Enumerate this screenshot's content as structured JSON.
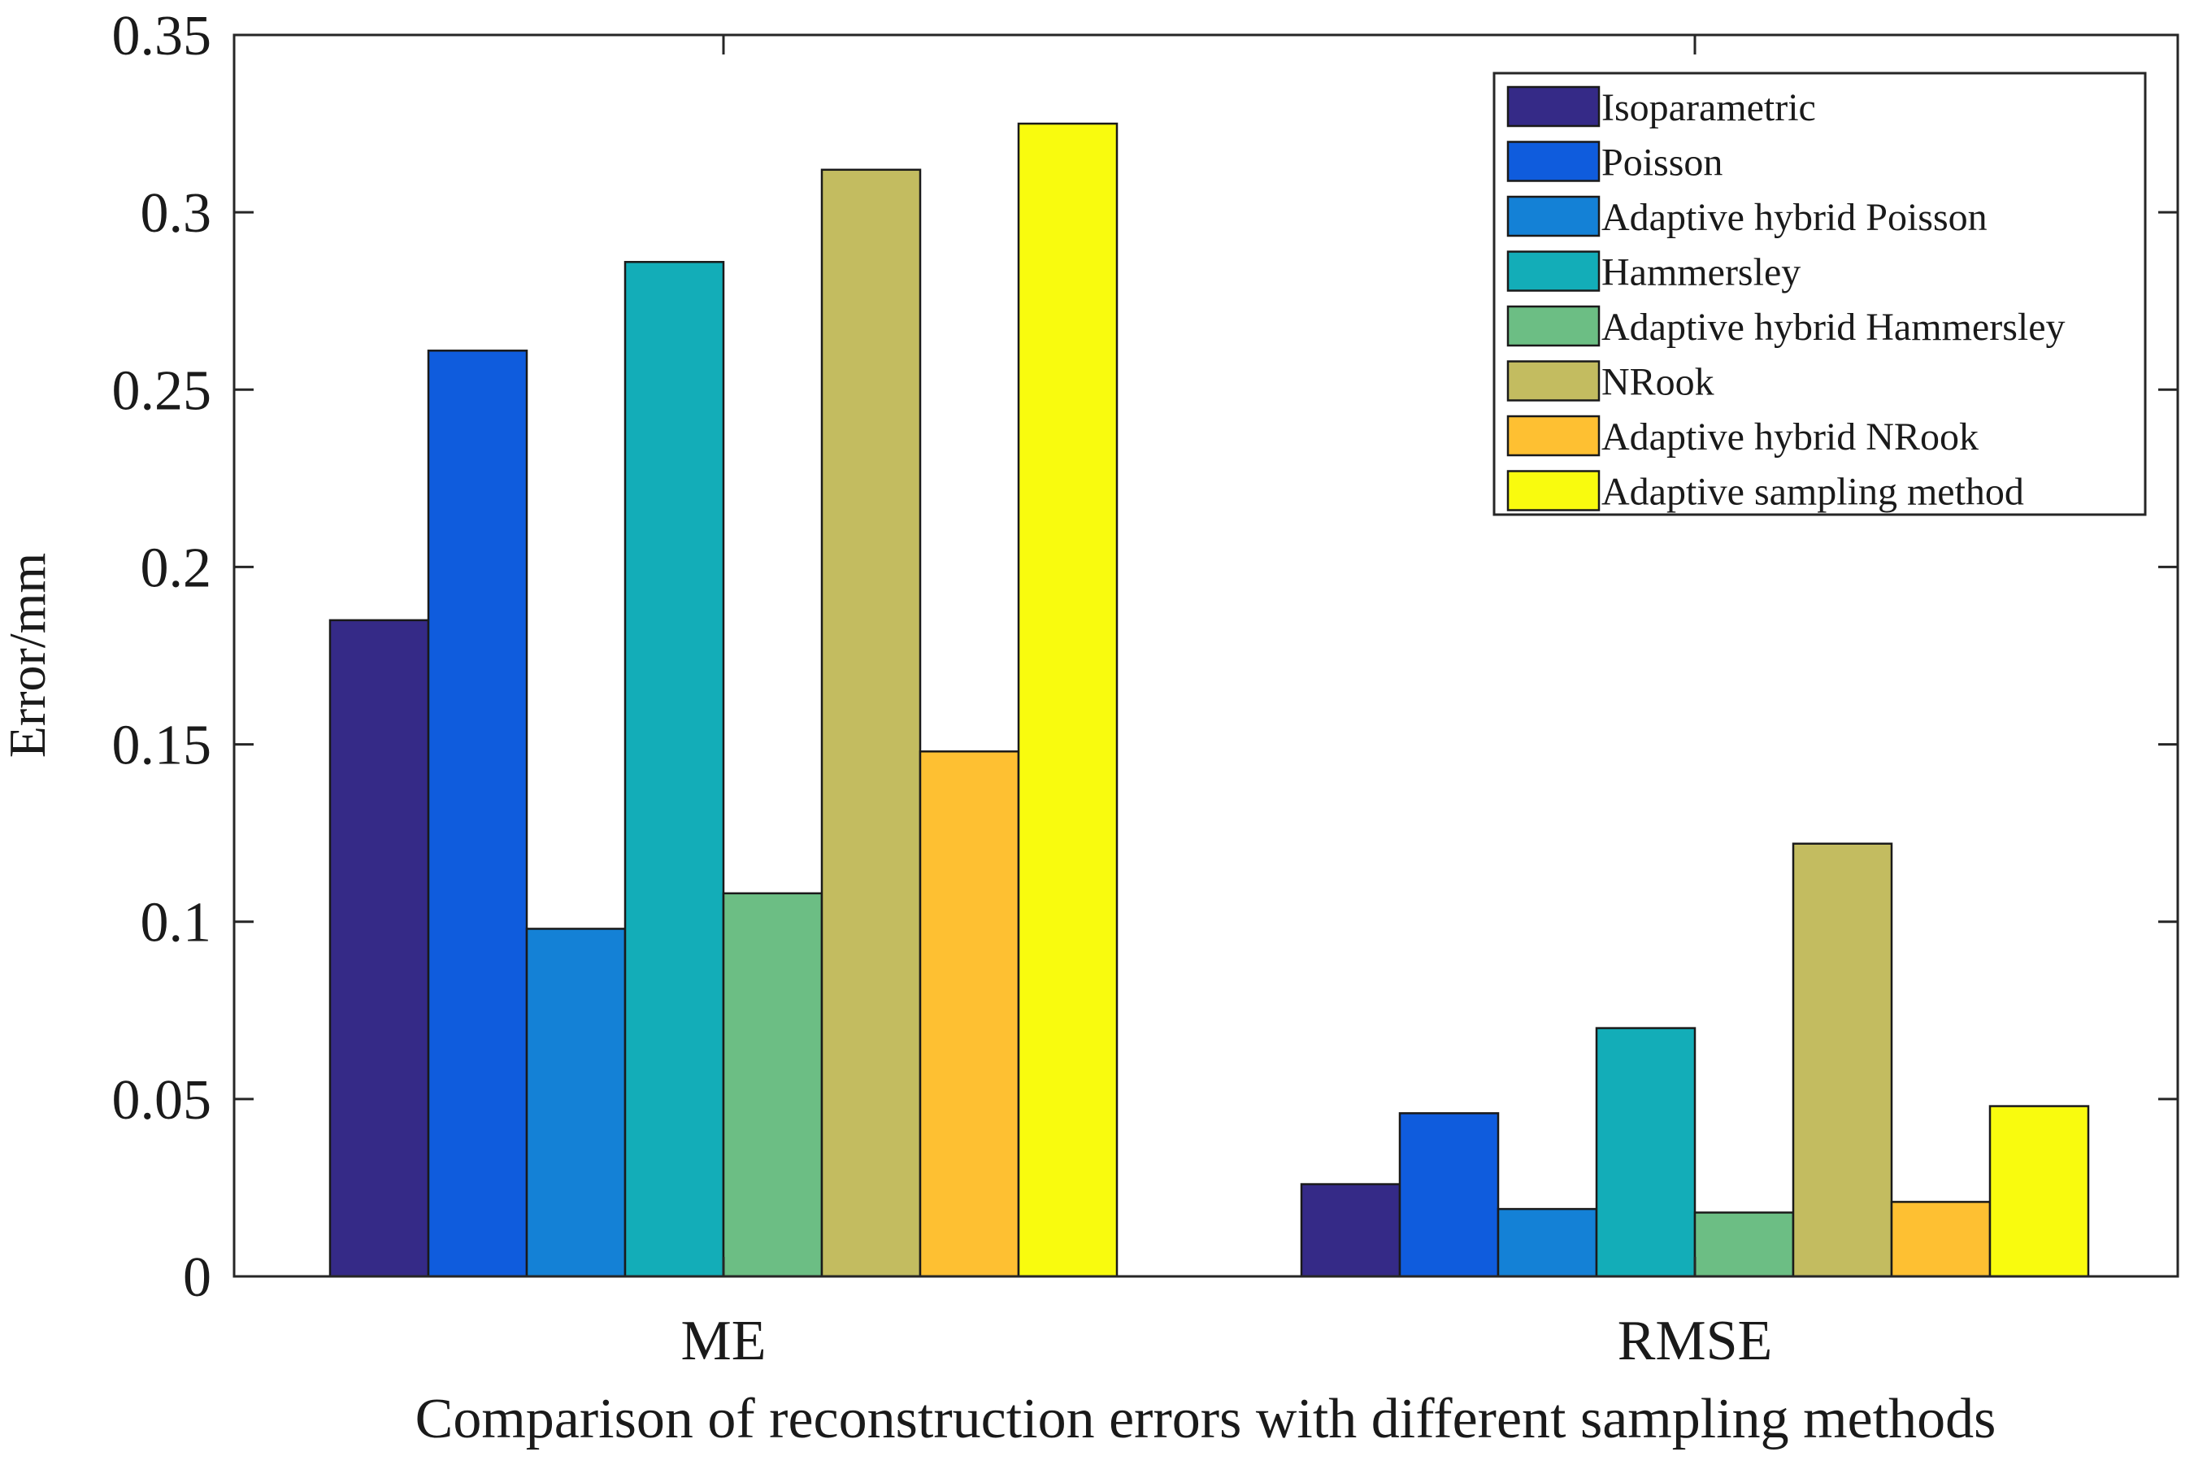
{
  "chart_data": {
    "type": "bar",
    "title": "",
    "xlabel": "Comparison of reconstruction errors with different sampling methods",
    "ylabel": "Error/mm",
    "ylim": [
      0,
      0.35
    ],
    "yticks": [
      "0",
      "0.05",
      "0.1",
      "0.15",
      "0.2",
      "0.25",
      "0.3",
      "0.35"
    ],
    "ytick_values": [
      0,
      0.05,
      0.1,
      0.15,
      0.2,
      0.25,
      0.3,
      0.35
    ],
    "categories": [
      "ME",
      "RMSE"
    ],
    "legend_position": "top-right",
    "grid": false,
    "series": [
      {
        "name": "Isoparametric",
        "color": "#352a87",
        "values": [
          0.185,
          0.026
        ]
      },
      {
        "name": "Poisson",
        "color": "#0f5cdd",
        "values": [
          0.261,
          0.046
        ]
      },
      {
        "name": "Adaptive hybrid Poisson",
        "color": "#1481d6",
        "values": [
          0.098,
          0.019
        ]
      },
      {
        "name": "Hammersley",
        "color": "#13adb8",
        "values": [
          0.286,
          0.07
        ]
      },
      {
        "name": "Adaptive hybrid Hammersley",
        "color": "#6cbe84",
        "values": [
          0.108,
          0.018
        ]
      },
      {
        "name": "NRook",
        "color": "#c3bc60",
        "values": [
          0.312,
          0.122
        ]
      },
      {
        "name": "Adaptive hybrid NRook",
        "color": "#fec032",
        "values": [
          0.148,
          0.021
        ]
      },
      {
        "name": "Adaptive sampling method",
        "color": "#f9fb0e",
        "values": [
          0.325,
          0.048
        ]
      }
    ]
  }
}
